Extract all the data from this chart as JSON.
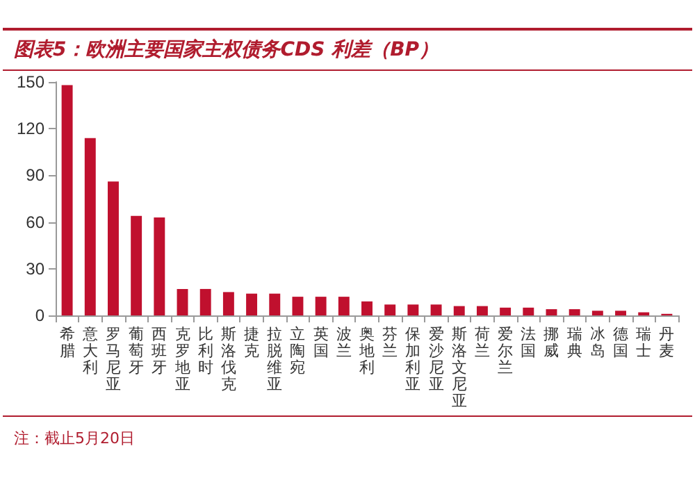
{
  "chart_data": {
    "type": "bar",
    "title": "图表5：欧洲主要国家主权债务CDS 利差（BP）",
    "categories": [
      "希腊",
      "意大利",
      "罗马尼亚",
      "葡萄牙",
      "西班牙",
      "克罗地亚",
      "比利时",
      "斯洛伐克",
      "捷克",
      "拉脱维亚",
      "立陶宛",
      "英国",
      "波兰",
      "奥地利",
      "芬兰",
      "保加利亚",
      "爱沙尼亚",
      "斯洛文尼亚",
      "荷兰",
      "爱尔兰",
      "法国",
      "挪威",
      "瑞典",
      "冰岛",
      "德国",
      "瑞士",
      "丹麦"
    ],
    "values": [
      148,
      114,
      86,
      64,
      63,
      17,
      17,
      15,
      14,
      14,
      12,
      12,
      12,
      9,
      7,
      7,
      7,
      6,
      6,
      5,
      5,
      4,
      4,
      3,
      3,
      2,
      1
    ],
    "color": "#c0102e",
    "ylim": [
      0,
      150
    ],
    "yticks": [
      0,
      30,
      60,
      90,
      120,
      150
    ],
    "grid": false,
    "annotations": [
      "注：截止5月20日"
    ]
  }
}
